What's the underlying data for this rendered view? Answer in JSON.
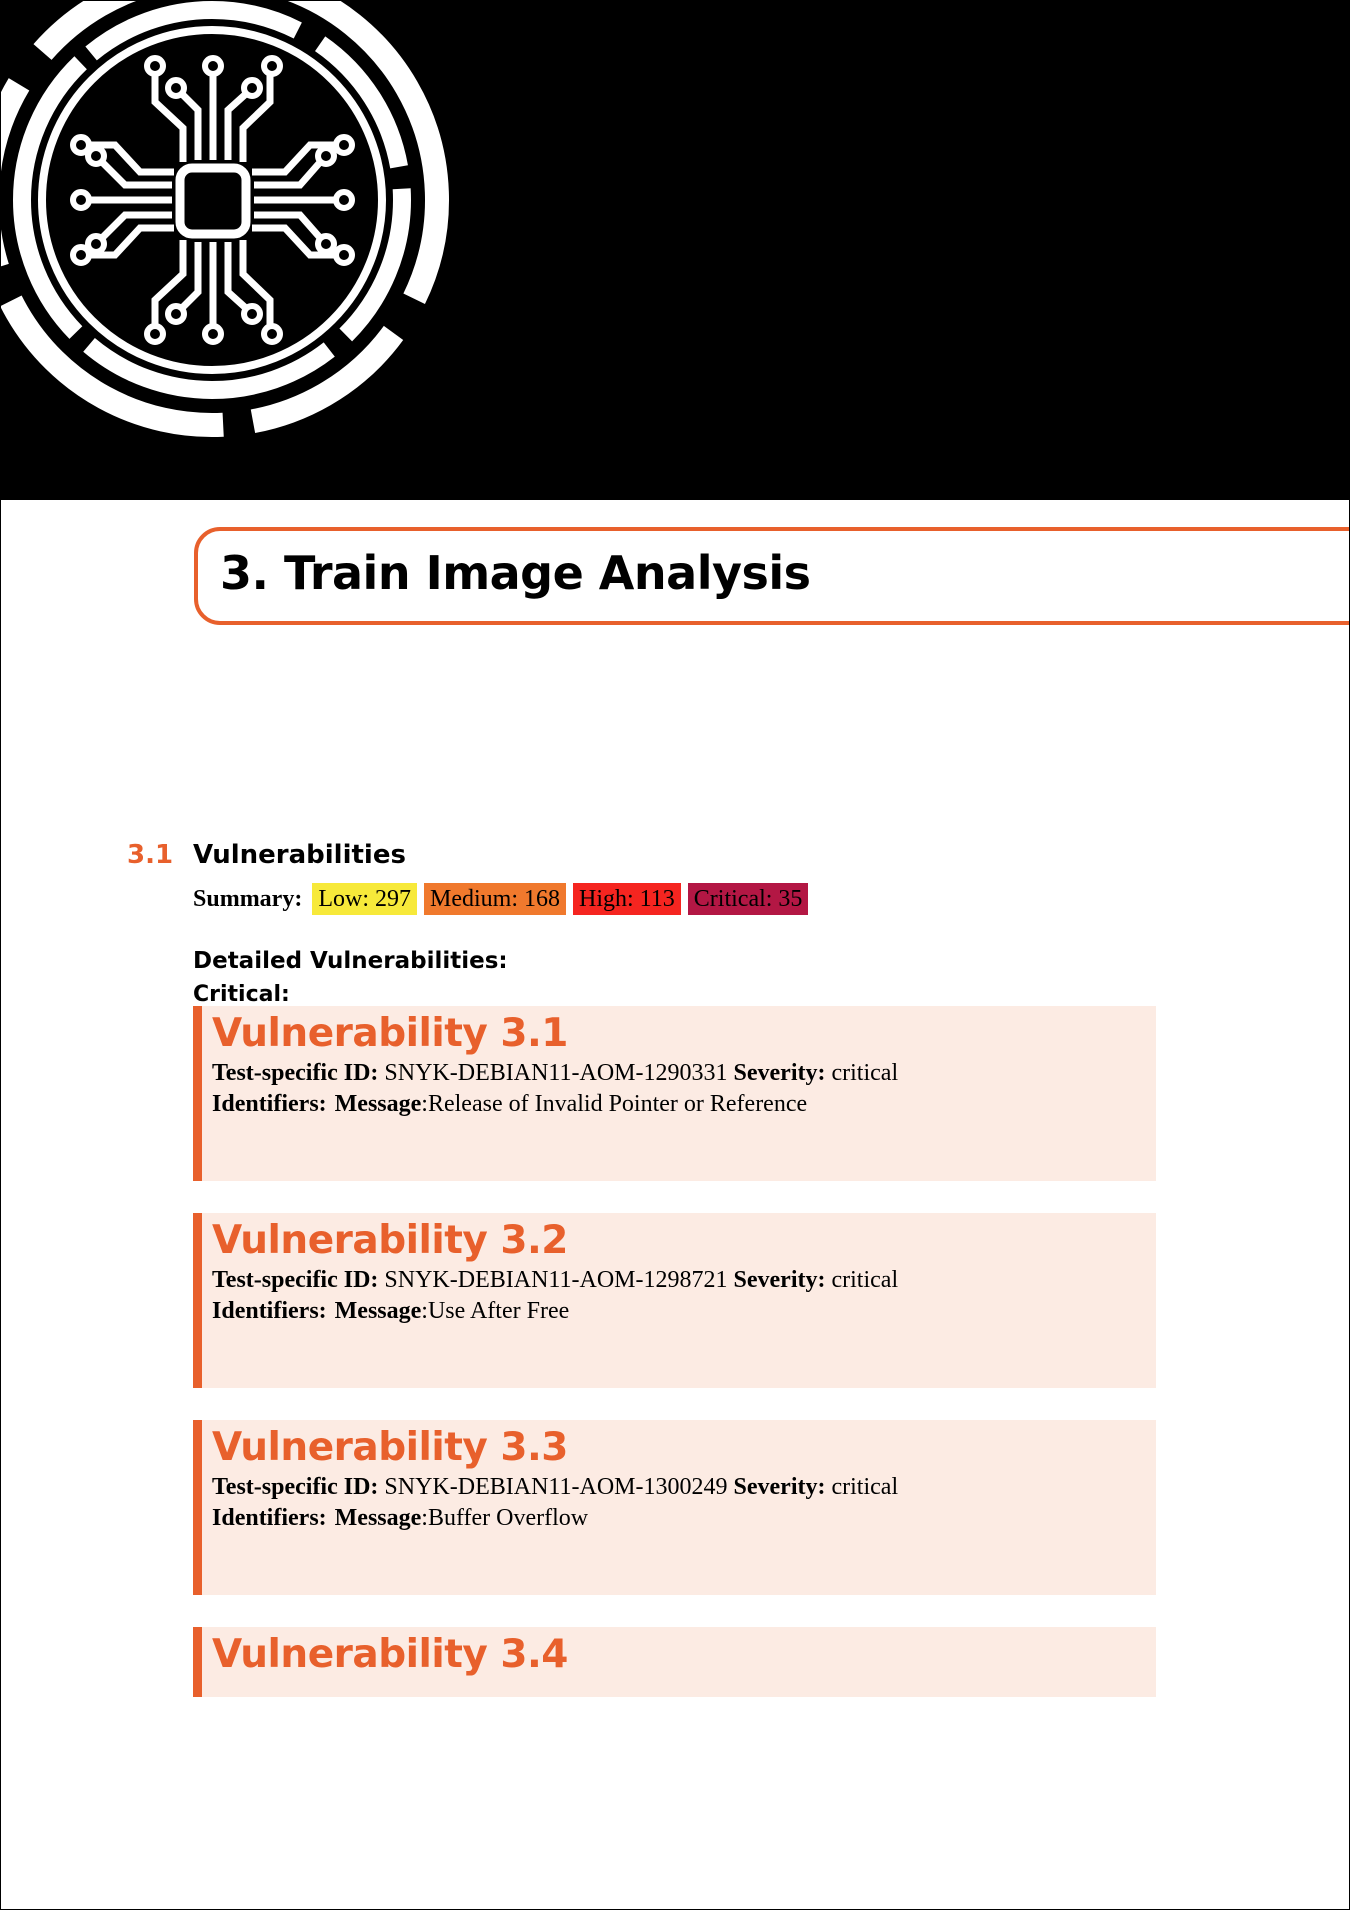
{
  "chapter": {
    "number": "3.",
    "title": "Train Image Analysis"
  },
  "section": {
    "number": "3.1",
    "title": "Vulnerabilities"
  },
  "summary": {
    "label": "Summary:",
    "low": "Low: 297",
    "medium": "Medium: 168",
    "high": "High: 113",
    "critical": "Critical: 35"
  },
  "severity_colors": {
    "low": "#f7e93a",
    "medium": "#f0792d",
    "high": "#f52520",
    "critical": "#b31744"
  },
  "accent_color": "#e8602c",
  "detailed_heading": "Detailed Vulnerabilities:",
  "critical_heading": "Critical:",
  "labels": {
    "test_id": "Test-specific ID:",
    "severity": "Severity:",
    "identifiers": "Identifiers:",
    "message": "Message"
  },
  "vulnerabilities": [
    {
      "title": "Vulnerability 3.1",
      "id": "SNYK-DEBIAN11-AOM-1290331",
      "severity": "critical",
      "message": "Release of Invalid Pointer or Reference"
    },
    {
      "title": "Vulnerability 3.2",
      "id": "SNYK-DEBIAN11-AOM-1298721",
      "severity": "critical",
      "message": "Use After Free"
    },
    {
      "title": "Vulnerability 3.3",
      "id": "SNYK-DEBIAN11-AOM-1300249",
      "severity": "critical",
      "message": "Buffer Overflow"
    },
    {
      "title": "Vulnerability 3.4"
    }
  ],
  "icons": {
    "header_logo": "circuit-chip-icon"
  }
}
